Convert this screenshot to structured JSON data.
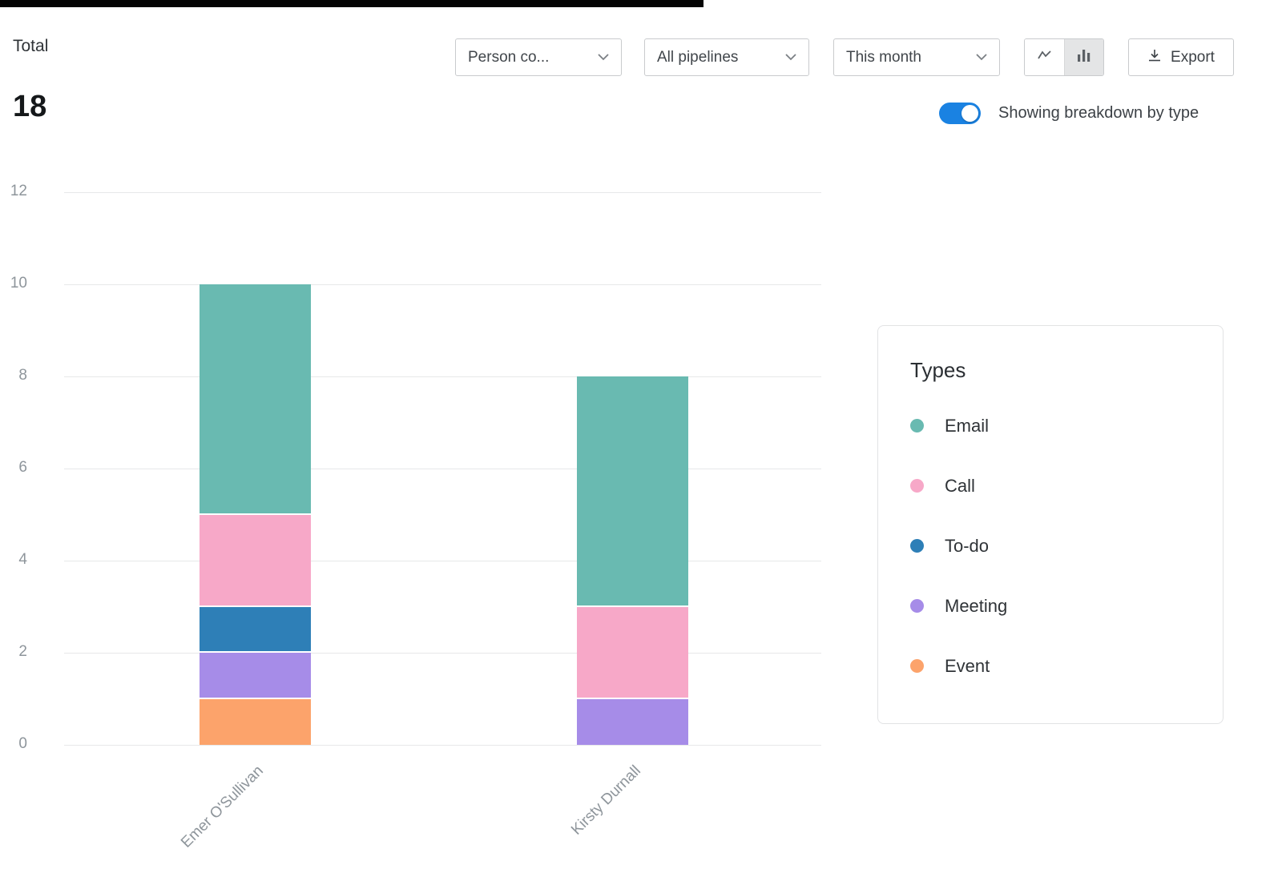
{
  "page": {
    "total_label": "Total",
    "total_value": "18"
  },
  "toolbar": {
    "filters": [
      {
        "label": "Person co...",
        "icon": "chevron-down-icon"
      },
      {
        "label": "All pipelines",
        "icon": "chevron-down-icon"
      },
      {
        "label": "This month",
        "icon": "chevron-down-icon"
      }
    ],
    "chart_type": {
      "options": [
        "line-chart-icon",
        "bar-chart-icon"
      ],
      "selected": "bar-chart-icon"
    },
    "export_label": "Export",
    "export_icon": "download-icon"
  },
  "breakdown_toggle": {
    "label": "Showing breakdown by type",
    "on": true,
    "accent_color": "#1a82e2"
  },
  "legend": {
    "title": "Types",
    "items": [
      {
        "label": "Email",
        "color": "#69bab1"
      },
      {
        "label": "Call",
        "color": "#f7a8c8"
      },
      {
        "label": "To-do",
        "color": "#2e7fb7"
      },
      {
        "label": "Meeting",
        "color": "#a68ce8"
      },
      {
        "label": "Event",
        "color": "#fca36b"
      }
    ]
  },
  "chart_data": {
    "type": "bar",
    "stacked": true,
    "title": "Total activities by person, breakdown by type",
    "categories": [
      "Emer O'Sullivan",
      "Kirsty Durnall"
    ],
    "series": [
      {
        "name": "Email",
        "color": "#69bab1",
        "values": [
          5,
          5
        ]
      },
      {
        "name": "Call",
        "color": "#f7a8c8",
        "values": [
          2,
          2
        ]
      },
      {
        "name": "To-do",
        "color": "#2e7fb7",
        "values": [
          1,
          0
        ]
      },
      {
        "name": "Meeting",
        "color": "#a68ce8",
        "values": [
          1,
          1
        ]
      },
      {
        "name": "Event",
        "color": "#fca36b",
        "values": [
          1,
          0
        ]
      }
    ],
    "totals": [
      10,
      8
    ],
    "yticks": [
      0,
      2,
      4,
      6,
      8,
      10,
      12
    ],
    "ylim": [
      0,
      12
    ],
    "grid": "horizontal",
    "legend_position": "right"
  }
}
